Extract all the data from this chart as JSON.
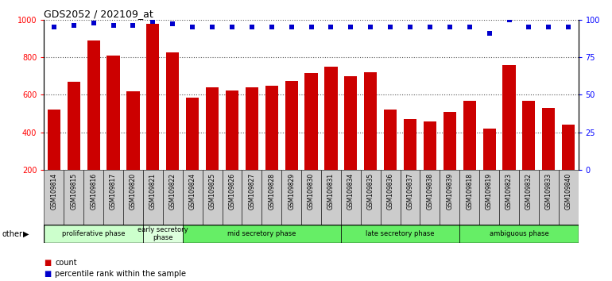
{
  "title": "GDS2052 / 202109_at",
  "samples": [
    "GSM109814",
    "GSM109815",
    "GSM109816",
    "GSM109817",
    "GSM109820",
    "GSM109821",
    "GSM109822",
    "GSM109824",
    "GSM109825",
    "GSM109826",
    "GSM109827",
    "GSM109828",
    "GSM109829",
    "GSM109830",
    "GSM109831",
    "GSM109834",
    "GSM109835",
    "GSM109836",
    "GSM109837",
    "GSM109838",
    "GSM109839",
    "GSM109818",
    "GSM109819",
    "GSM109823",
    "GSM109832",
    "GSM109833",
    "GSM109840"
  ],
  "counts": [
    520,
    670,
    890,
    810,
    620,
    980,
    825,
    585,
    640,
    625,
    640,
    650,
    675,
    715,
    750,
    700,
    720,
    520,
    470,
    460,
    510,
    570,
    420,
    760,
    570,
    530,
    440
  ],
  "percentile_ranks": [
    95,
    96,
    98,
    96,
    96,
    99,
    97,
    95,
    95,
    95,
    95,
    95,
    95,
    95,
    95,
    95,
    95,
    95,
    95,
    95,
    95,
    95,
    91,
    100,
    95,
    95,
    95
  ],
  "bar_color": "#cc0000",
  "dot_color": "#0000cc",
  "ylim_left": [
    200,
    1000
  ],
  "ylim_right": [
    0,
    100
  ],
  "yticks_left": [
    200,
    400,
    600,
    800,
    1000
  ],
  "yticks_right": [
    0,
    25,
    50,
    75,
    100
  ],
  "phases": [
    {
      "label": "proliferative phase",
      "start": 0,
      "end": 5,
      "color": "#ccffcc"
    },
    {
      "label": "early secretory\nphase",
      "start": 5,
      "end": 7,
      "color": "#ddffdd"
    },
    {
      "label": "mid secretory phase",
      "start": 7,
      "end": 15,
      "color": "#66ee66"
    },
    {
      "label": "late secretory phase",
      "start": 15,
      "end": 21,
      "color": "#66ee66"
    },
    {
      "label": "ambiguous phase",
      "start": 21,
      "end": 27,
      "color": "#66ee66"
    }
  ],
  "other_label": "other",
  "legend_count_label": "count",
  "legend_pct_label": "percentile rank within the sample",
  "plot_bg": "#ffffff",
  "tick_bg": "#cccccc",
  "grid_color": "#555555",
  "border_color": "#000000"
}
